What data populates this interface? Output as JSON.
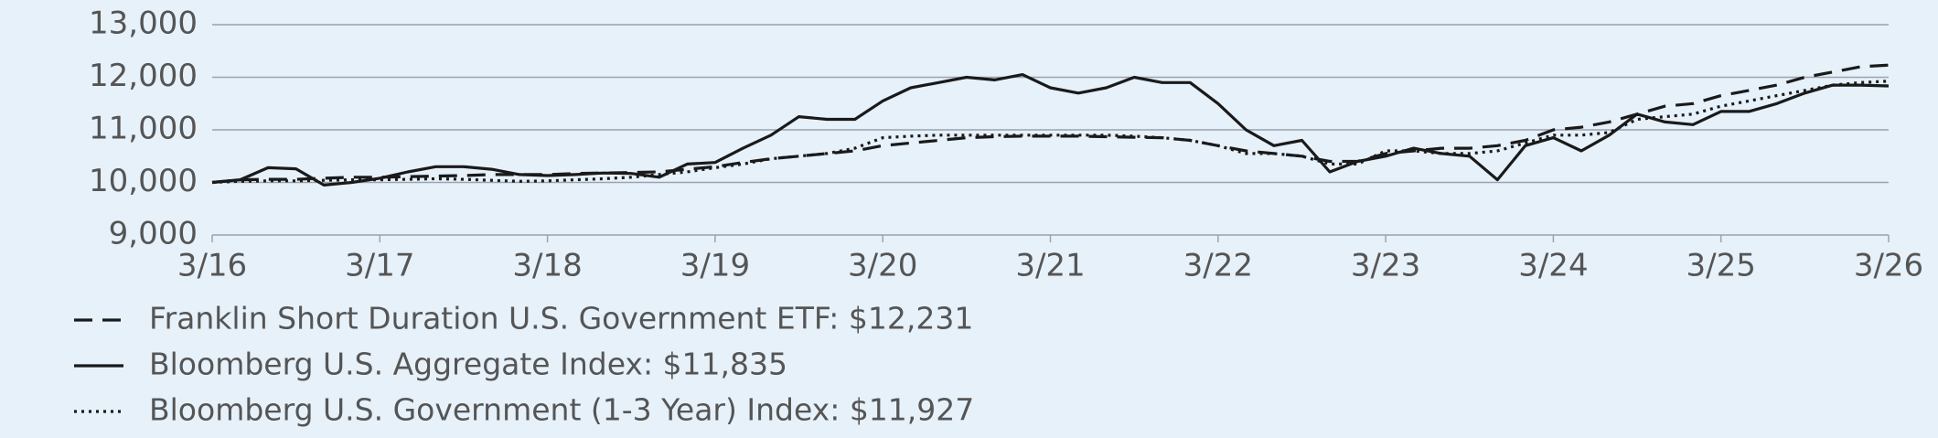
{
  "chart_data": {
    "type": "line",
    "x": [
      "3/16",
      "5/16",
      "7/16",
      "9/16",
      "11/16",
      "1/17",
      "3/17",
      "5/17",
      "7/17",
      "9/17",
      "11/17",
      "1/18",
      "3/18",
      "5/18",
      "7/18",
      "9/18",
      "11/18",
      "1/19",
      "3/19",
      "5/19",
      "7/19",
      "9/19",
      "11/19",
      "1/20",
      "3/20",
      "5/20",
      "7/20",
      "9/20",
      "11/20",
      "1/21",
      "3/21",
      "5/21",
      "7/21",
      "9/21",
      "11/21",
      "1/22",
      "3/22",
      "5/22",
      "7/22",
      "9/22",
      "11/22",
      "1/23",
      "3/23",
      "5/23",
      "7/23",
      "9/23",
      "11/23",
      "1/24",
      "3/24",
      "5/24",
      "7/24",
      "9/24",
      "11/24",
      "1/25",
      "3/25",
      "5/25",
      "7/25",
      "9/25",
      "11/25",
      "1/26",
      "3/26"
    ],
    "xticks": [
      "3/16",
      "3/17",
      "3/18",
      "3/19",
      "3/20",
      "3/21",
      "3/22",
      "3/23",
      "3/24",
      "3/25",
      "3/26"
    ],
    "ylim": [
      9000,
      13000
    ],
    "yticks": [
      {
        "value": 9000,
        "label": "9,000"
      },
      {
        "value": 10000,
        "label": "10,000"
      },
      {
        "value": 11000,
        "label": "11,000"
      },
      {
        "value": 12000,
        "label": "12,000"
      },
      {
        "value": 13000,
        "label": "13,000"
      }
    ],
    "grid": true,
    "series": [
      {
        "name": "Franklin Short Duration U.S. Government ETF: $12,231",
        "color": "#1a1a1a",
        "dash": "dashed",
        "values": [
          10000,
          10050,
          10060,
          10060,
          10080,
          10100,
          10100,
          10110,
          10120,
          10130,
          10150,
          10150,
          10150,
          10170,
          10180,
          10190,
          10200,
          10250,
          10300,
          10380,
          10450,
          10500,
          10550,
          10600,
          10700,
          10750,
          10800,
          10850,
          10870,
          10880,
          10880,
          10880,
          10870,
          10860,
          10850,
          10800,
          10700,
          10600,
          10550,
          10500,
          10400,
          10400,
          10550,
          10600,
          10650,
          10650,
          10700,
          10800,
          11000,
          11050,
          11150,
          11300,
          11450,
          11500,
          11650,
          11750,
          11850,
          12000,
          12100,
          12200,
          12231
        ]
      },
      {
        "name": "Bloomberg U.S. Aggregate Index: $11,835",
        "color": "#1a1a1a",
        "dash": "solid",
        "values": [
          10000,
          10050,
          10280,
          10260,
          9950,
          10000,
          10080,
          10200,
          10300,
          10300,
          10250,
          10150,
          10130,
          10150,
          10180,
          10170,
          10100,
          10350,
          10380,
          10650,
          10900,
          11250,
          11200,
          11200,
          11550,
          11800,
          11900,
          12000,
          11950,
          12050,
          11800,
          11700,
          11800,
          12000,
          11900,
          11900,
          11500,
          11000,
          10700,
          10800,
          10200,
          10400,
          10500,
          10650,
          10550,
          10500,
          10050,
          10700,
          10850,
          10600,
          10900,
          11300,
          11150,
          11100,
          11350,
          11350,
          11500,
          11700,
          11850,
          11850,
          11835
        ]
      },
      {
        "name": "Bloomberg U.S. Government (1-3 Year) Index: $11,927",
        "color": "#1a1a1a",
        "dash": "dotted",
        "values": [
          10000,
          10020,
          10030,
          10030,
          10040,
          10050,
          10050,
          10060,
          10070,
          10060,
          10040,
          10020,
          10030,
          10050,
          10070,
          10100,
          10150,
          10200,
          10280,
          10350,
          10450,
          10500,
          10550,
          10650,
          10850,
          10880,
          10900,
          10900,
          10900,
          10900,
          10900,
          10900,
          10900,
          10880,
          10850,
          10800,
          10700,
          10550,
          10550,
          10500,
          10350,
          10350,
          10600,
          10600,
          10550,
          10550,
          10600,
          10750,
          10900,
          10900,
          10950,
          11200,
          11250,
          11300,
          11450,
          11550,
          11650,
          11750,
          11850,
          11900,
          11927
        ]
      }
    ]
  }
}
